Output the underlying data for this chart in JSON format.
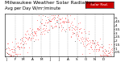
{
  "title": "Milwaukee Weather Solar Radiation",
  "subtitle": "Avg per Day W/m²/minute",
  "background_color": "#ffffff",
  "plot_bg_color": "#ffffff",
  "legend_label": "Solar Rad.",
  "legend_color": "#cc0000",
  "dot_color_main": "#ff0000",
  "dot_color_alt": "#000000",
  "ylim": [
    0,
    5.5
  ],
  "ytick_labels": [
    "0.5",
    "1",
    "1.5",
    "2",
    "2.5",
    "3",
    "3.5",
    "4",
    "4.5",
    "5"
  ],
  "ytick_values": [
    0.5,
    1.0,
    1.5,
    2.0,
    2.5,
    3.0,
    3.5,
    4.0,
    4.5,
    5.0
  ],
  "num_points": 365,
  "grid_color": "#999999",
  "title_fontsize": 4.5,
  "subtitle_fontsize": 3.8,
  "tick_fontsize": 3.0,
  "marker_size": 0.8,
  "month_start_days": [
    0,
    31,
    59,
    90,
    120,
    151,
    181,
    212,
    243,
    273,
    304,
    334
  ],
  "month_labels": [
    "J",
    "F",
    "M",
    "A",
    "M",
    "J",
    "J",
    "A",
    "S",
    "O",
    "N",
    "D"
  ]
}
